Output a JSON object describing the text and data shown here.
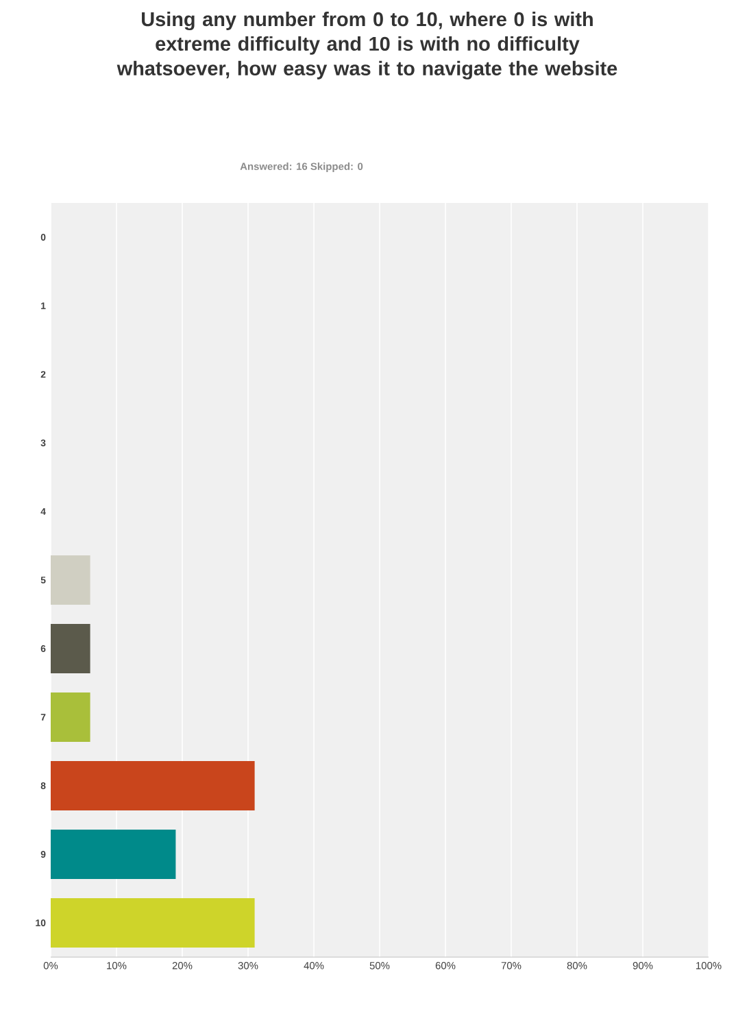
{
  "chart_data": {
    "type": "bar",
    "orientation": "horizontal",
    "title": "Using any number from 0 to 10, where 0 is with extreme difficulty and 10 is with no difficulty whatsoever, how easy was it to navigate the website",
    "subtitle": "Answered: 16    Skipped: 0",
    "categories": [
      "0",
      "1",
      "2",
      "3",
      "4",
      "5",
      "6",
      "7",
      "8",
      "9",
      "10"
    ],
    "values": [
      0,
      0,
      0,
      0,
      0,
      6,
      6,
      6,
      31,
      19,
      31
    ],
    "colors": [
      "#d0cfc2",
      "#5b5a4b",
      "#a9bf3a",
      "#c9451c",
      "#008a8a",
      "#d0cfc2",
      "#5b5a4b",
      "#a9bf3a",
      "#c9451c",
      "#008a8a",
      "#ced42a"
    ],
    "xlim": [
      0,
      100
    ],
    "xticks": [
      {
        "value": 0,
        "label": "0%"
      },
      {
        "value": 10,
        "label": "10%"
      },
      {
        "value": 20,
        "label": "20%"
      },
      {
        "value": 30,
        "label": "30%"
      },
      {
        "value": 40,
        "label": "40%"
      },
      {
        "value": 50,
        "label": "50%"
      },
      {
        "value": 60,
        "label": "60%"
      },
      {
        "value": 70,
        "label": "70%"
      },
      {
        "value": 80,
        "label": "80%"
      },
      {
        "value": 90,
        "label": "90%"
      },
      {
        "value": 100,
        "label": "100%"
      }
    ],
    "grid": "x"
  }
}
